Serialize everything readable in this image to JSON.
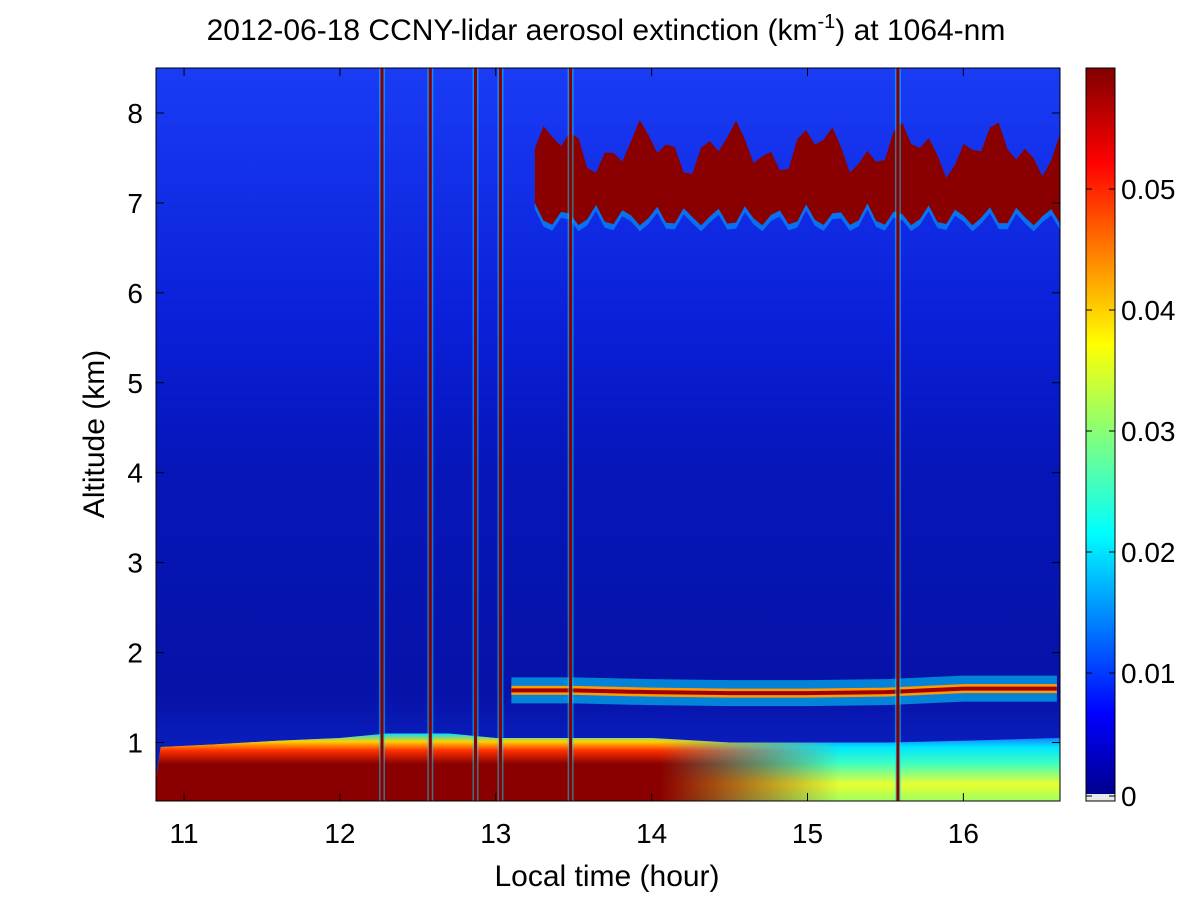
{
  "chart_data": {
    "type": "heatmap",
    "title_main": "2012-06-18 CCNY-lidar aerosol extinction (km",
    "title_sup": "-1",
    "title_tail": ") at 1064-nm",
    "xlabel": "Local time (hour)",
    "ylabel": "Altitude (km)",
    "xlim": [
      10.82,
      16.62
    ],
    "ylim": [
      0.35,
      8.5
    ],
    "xticks": [
      11,
      12,
      13,
      14,
      15,
      16
    ],
    "yticks": [
      1,
      2,
      3,
      4,
      5,
      6,
      7,
      8
    ],
    "colorbar": {
      "range": [
        0,
        0.06
      ],
      "ticks": [
        0,
        0.01,
        0.02,
        0.03,
        0.04,
        0.05
      ],
      "tick_labels": [
        "0",
        "0.01",
        "0.02",
        "0.03",
        "0.04",
        "0.05"
      ],
      "colormap": "jet"
    },
    "features": {
      "boundary_layer_top_km": [
        [
          10.85,
          0.95
        ],
        [
          11.2,
          0.98
        ],
        [
          11.6,
          1.02
        ],
        [
          12.0,
          1.05
        ],
        [
          12.3,
          1.1
        ],
        [
          12.7,
          1.1
        ],
        [
          13.0,
          1.05
        ],
        [
          13.5,
          1.05
        ],
        [
          14.0,
          1.05
        ],
        [
          14.5,
          1.0
        ],
        [
          15.0,
          1.0
        ],
        [
          15.5,
          1.0
        ],
        [
          16.0,
          1.02
        ],
        [
          16.6,
          1.05
        ]
      ],
      "elevated_layer_center_km": [
        [
          13.1,
          1.58
        ],
        [
          13.5,
          1.58
        ],
        [
          14.0,
          1.56
        ],
        [
          14.5,
          1.55
        ],
        [
          15.0,
          1.55
        ],
        [
          15.5,
          1.56
        ],
        [
          16.0,
          1.6
        ],
        [
          16.6,
          1.6
        ]
      ],
      "cloud_layer_km": [
        7.0,
        7.6
      ],
      "cloud_times_hour": [
        13.25,
        16.62
      ]
    },
    "grid": false,
    "legend": "colorbar-right"
  }
}
